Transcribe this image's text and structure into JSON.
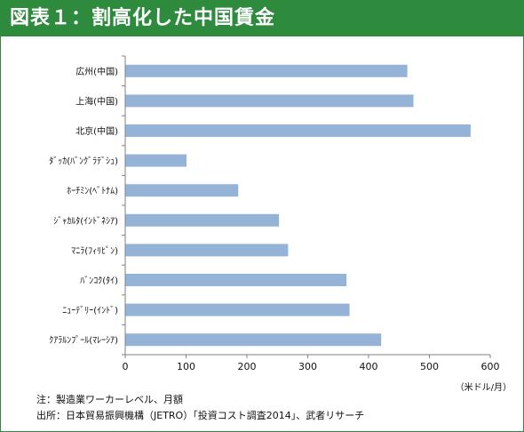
{
  "title": "図表１：割高化した中国賃金",
  "notes": {
    "note1": "注：製造業ワーカーレベル、月額",
    "note2": "出所：日本貿易振興機構（JETRO）「投資コスト調査2014」、武者リサーチ"
  },
  "colors": {
    "bar": "#95b3d7",
    "title_bg": "#2e8b3e",
    "axis": "#808080"
  },
  "chart_data": {
    "type": "bar",
    "orientation": "horizontal",
    "categories": [
      "広州(中国)",
      "上海(中国)",
      "北京(中国)",
      "ﾀﾞｯｶ(ﾊﾞﾝｸﾞﾗﾃﾞｼｭ)",
      "ﾎｰﾁﾐﾝ(ﾍﾞﾄﾅﾑ)",
      "ｼﾞｬｶﾙﾀ(ｲﾝﾄﾞﾈｼｱ)",
      "ﾏﾆﾗ(ﾌｨﾘﾋﾟﾝ)",
      "ﾊﾞﾝｺｸ(ﾀｲ)",
      "ﾆｭｰﾃﾞﾘｰ(ｲﾝﾄﾞ)",
      "ｸｱﾗﾙﾝﾌﾟｰﾙ(ﾏﾚｰｼｱ)"
    ],
    "values": [
      463,
      473,
      567,
      100,
      185,
      252,
      267,
      363,
      368,
      420
    ],
    "xlim": [
      0,
      600
    ],
    "xticks": [
      "0",
      "100",
      "200",
      "300",
      "400",
      "500",
      "600"
    ],
    "xlabel": "（米ドル/月）",
    "ylabel": "",
    "grid": false,
    "legend": "none"
  }
}
